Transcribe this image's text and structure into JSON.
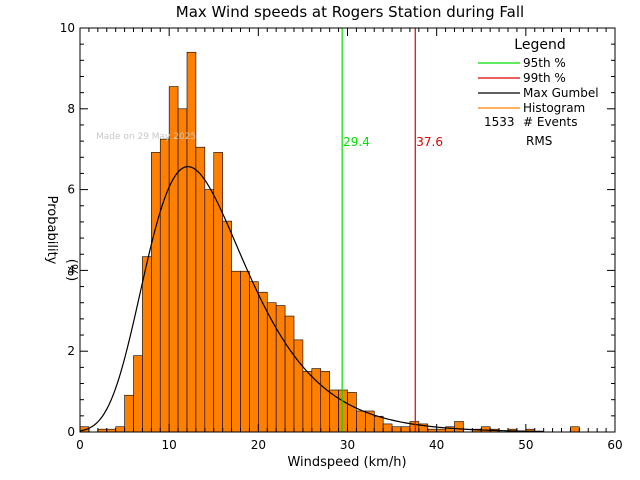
{
  "chart_data": {
    "type": "bar",
    "title": "Max Wind speeds at Rogers Station during Fall",
    "xlabel": "Windspeed (km/h)",
    "ylabel": "Probability",
    "ylabel_unit": "(%)",
    "xlim": [
      0,
      60
    ],
    "ylim": [
      0,
      10
    ],
    "xticks": [
      "0",
      "10",
      "20",
      "30",
      "40",
      "50",
      "60"
    ],
    "yticks": [
      "0",
      "2",
      "4",
      "6",
      "8",
      "10"
    ],
    "watermark": "Made on 29 May 2025",
    "legend": {
      "title": "Legend",
      "position": "top-right",
      "entries": [
        {
          "label": "95th %",
          "color": "#00dd00"
        },
        {
          "label": "99th %",
          "color": "#dd0000"
        },
        {
          "label": "Max Gumbel",
          "color": "#000000"
        },
        {
          "label": "Histogram",
          "color": "#ff8000"
        }
      ],
      "events_count": "1533",
      "events_label": "# Events",
      "rms_label": "RMS"
    },
    "percentiles": [
      {
        "name": "95th %",
        "value": 29.4,
        "label": "29.4",
        "color": "#00dd00"
      },
      {
        "name": "99th %",
        "value": 37.6,
        "label": "37.6",
        "color": "#dd0000"
      }
    ],
    "histogram": {
      "name": "Histogram",
      "color": "#ff8000",
      "bin_width": 1,
      "bin_start": 0,
      "values": [
        0.13,
        0.0,
        0.07,
        0.07,
        0.13,
        0.91,
        1.89,
        4.34,
        6.92,
        7.25,
        8.55,
        8.0,
        9.4,
        7.05,
        6.0,
        6.92,
        5.22,
        3.98,
        3.98,
        3.72,
        3.46,
        3.2,
        3.13,
        2.87,
        2.28,
        1.5,
        1.57,
        1.5,
        1.04,
        1.04,
        0.98,
        0.52,
        0.52,
        0.39,
        0.2,
        0.13,
        0.13,
        0.26,
        0.2,
        0.07,
        0.07,
        0.13,
        0.26,
        0.0,
        0.07,
        0.13,
        0.07,
        0.0,
        0.07,
        0.0,
        0.07,
        0.0,
        0.0,
        0.0,
        0.0,
        0.13,
        0.0,
        0.0,
        0.0,
        0.0
      ]
    },
    "gumbel": {
      "name": "Max Gumbel",
      "color": "#000000",
      "location": 12.1,
      "scale": 5.6
    }
  }
}
